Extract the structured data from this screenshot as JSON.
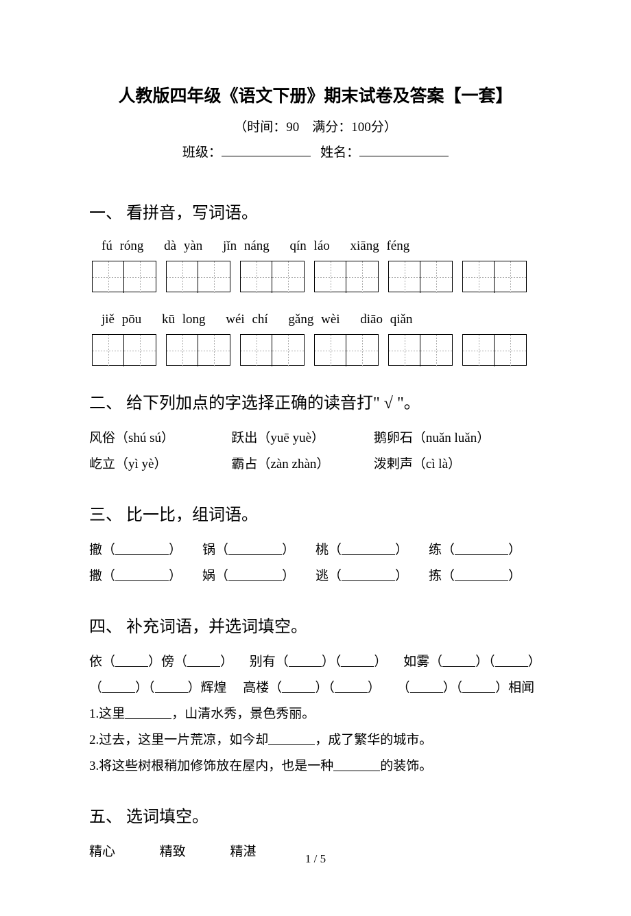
{
  "title": "人教版四年级《语文下册》期末试卷及答案【一套】",
  "subtitle": "（时间：90　满分：100分）",
  "form": {
    "class_label": "班级：",
    "name_label": "姓名："
  },
  "q1": {
    "heading": "一、 看拼音，写词语。",
    "row1_pinyin": "fú róng　 dà yàn　 jǐn náng　 qín láo　 xiāng féng",
    "row2_pinyin": "jiě pōu　 kū long　 wéi chí　 gǎng wèi　 diāo qiǎn"
  },
  "q2": {
    "heading": "二、 给下列加点的字选择正确的读音打\" √ \"。",
    "line1_a": "风俗（shú sú）",
    "line1_b": "跃出（yuē yuè）",
    "line1_c": "鹅卵石（nuǎn luǎn）",
    "line2_a": "屹立（yì yè）",
    "line2_b": "霸占（zàn zhàn）",
    "line2_c": "泼剌声（cì là）"
  },
  "q3": {
    "heading": "三、 比一比，组词语。",
    "row1": [
      "撤",
      "锅",
      "桃",
      "练"
    ],
    "row2": [
      "撒",
      "娲",
      "逃",
      "拣"
    ]
  },
  "q4": {
    "heading": "四、 补充词语，并选词填空。",
    "line1_a": "依（",
    "line1_b": "）傍（",
    "line1_c": "）",
    "line1_d": "别有（",
    "line1_e": "）（",
    "line1_f": "）",
    "line1_g": "如雾（",
    "line1_h": "）（",
    "line1_i": "）",
    "line2_a": "（",
    "line2_b": "）（",
    "line2_c": "）辉煌",
    "line2_d": "高楼（",
    "line2_e": "）（",
    "line2_f": "）",
    "line2_g": "（",
    "line2_h": "）（",
    "line2_i": "）相闻",
    "s1_a": "1.这里",
    "s1_b": "，山清水秀，景色秀丽。",
    "s2_a": "2.过去，这里一片荒凉，如今却",
    "s2_b": "，成了繁华的城市。",
    "s3_a": "3.将这些树根稍加修饰放在屋内，也是一种",
    "s3_b": "的装饰。"
  },
  "q5": {
    "heading": "五、 选词填空。",
    "w1": "精心",
    "w2": "精致",
    "w3": "精湛"
  },
  "page_num": "1 / 5"
}
